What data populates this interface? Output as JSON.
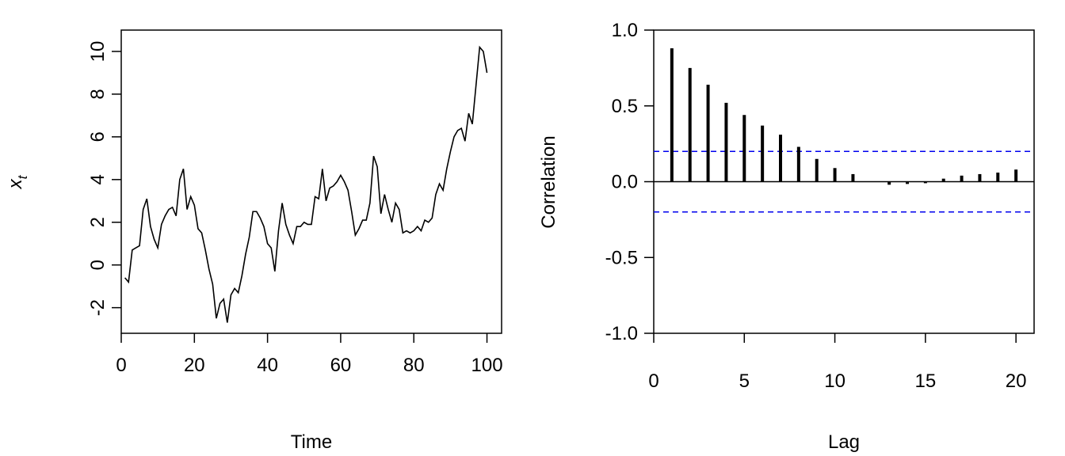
{
  "chart_data": [
    {
      "type": "line",
      "title": "",
      "xlabel": "Time",
      "ylabel": "x",
      "ylabel_subscript": "t",
      "xlim": [
        0,
        104
      ],
      "ylim": [
        -3.2,
        11
      ],
      "xticks": [
        0,
        20,
        40,
        60,
        80,
        100
      ],
      "yticks": [
        -2,
        0,
        2,
        4,
        6,
        8,
        10
      ],
      "x": [
        1,
        2,
        3,
        4,
        5,
        6,
        7,
        8,
        9,
        10,
        11,
        12,
        13,
        14,
        15,
        16,
        17,
        18,
        19,
        20,
        21,
        22,
        23,
        24,
        25,
        26,
        27,
        28,
        29,
        30,
        31,
        32,
        33,
        34,
        35,
        36,
        37,
        38,
        39,
        40,
        41,
        42,
        43,
        44,
        45,
        46,
        47,
        48,
        49,
        50,
        51,
        52,
        53,
        54,
        55,
        56,
        57,
        58,
        59,
        60,
        61,
        62,
        63,
        64,
        65,
        66,
        67,
        68,
        69,
        70,
        71,
        72,
        73,
        74,
        75,
        76,
        77,
        78,
        79,
        80,
        81,
        82,
        83,
        84,
        85,
        86,
        87,
        88,
        89,
        90,
        91,
        92,
        93,
        94,
        95,
        96,
        97,
        98,
        99,
        100
      ],
      "values": [
        -0.6,
        -0.8,
        0.7,
        0.8,
        0.9,
        2.6,
        3.1,
        1.8,
        1.2,
        0.8,
        1.9,
        2.3,
        2.6,
        2.7,
        2.3,
        4.0,
        4.5,
        2.6,
        3.2,
        2.8,
        1.7,
        1.5,
        0.7,
        -0.2,
        -0.9,
        -2.5,
        -1.8,
        -1.6,
        -2.7,
        -1.4,
        -1.1,
        -1.3,
        -0.5,
        0.5,
        1.3,
        2.5,
        2.5,
        2.2,
        1.8,
        1.0,
        0.8,
        -0.3,
        1.6,
        2.9,
        1.9,
        1.4,
        1.0,
        1.8,
        1.8,
        2.0,
        1.9,
        1.9,
        3.2,
        3.1,
        4.5,
        3.0,
        3.6,
        3.7,
        3.9,
        4.2,
        3.9,
        3.5,
        2.5,
        1.4,
        1.7,
        2.1,
        2.1,
        2.9,
        5.1,
        4.6,
        2.4,
        3.3,
        2.6,
        2.0,
        2.9,
        2.6,
        1.5,
        1.6,
        1.5,
        1.6,
        1.8,
        1.6,
        2.1,
        2.0,
        2.2,
        3.3,
        3.8,
        3.5,
        4.5,
        5.3,
        6.0,
        6.3,
        6.4,
        5.8,
        7.1,
        6.6,
        8.4,
        10.2,
        10.0,
        9.0
      ]
    },
    {
      "type": "bar",
      "title": "",
      "xlabel": "Lag",
      "ylabel": "Correlation",
      "xlim": [
        0,
        21
      ],
      "ylim": [
        -1,
        1
      ],
      "xticks": [
        0,
        5,
        10,
        15,
        20
      ],
      "yticks": [
        -1.0,
        -0.5,
        0.0,
        0.5,
        1.0
      ],
      "ytick_labels": [
        "-1.0",
        "-0.5",
        "0.0",
        "0.5",
        "1.0"
      ],
      "lags": [
        1,
        2,
        3,
        4,
        5,
        6,
        7,
        8,
        9,
        10,
        11,
        12,
        13,
        14,
        15,
        16,
        17,
        18,
        19,
        20
      ],
      "values": [
        0.88,
        0.75,
        0.64,
        0.52,
        0.44,
        0.37,
        0.31,
        0.23,
        0.15,
        0.09,
        0.05,
        0.0,
        -0.02,
        -0.015,
        -0.01,
        0.02,
        0.04,
        0.05,
        0.06,
        0.08
      ],
      "confidence_bounds": [
        -0.2,
        0.2
      ],
      "colors": {
        "bars": "#000000",
        "confidence": "#0000ee"
      }
    }
  ]
}
